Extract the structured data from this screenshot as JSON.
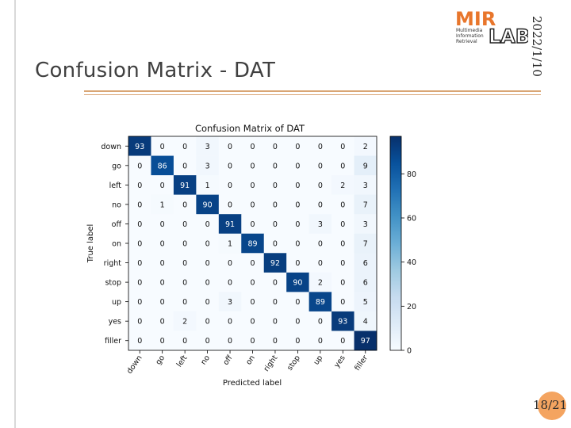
{
  "slide": {
    "title": "Confusion Matrix - DAT",
    "date": "2022/1/10",
    "page": "18/21",
    "logo_text": [
      "Multimedia",
      "Information",
      "Retrieval"
    ],
    "logo_word": "LAB",
    "logo_brand": "MIR"
  },
  "colors": {
    "accent": "#d9a574",
    "page_badge": "#f4a460"
  },
  "chart_data": {
    "type": "heatmap",
    "title": "Confusion Matrix of DAT",
    "xlabel": "Predicted label",
    "ylabel": "True label",
    "x_categories": [
      "down",
      "go",
      "left",
      "no",
      "off",
      "on",
      "right",
      "stop",
      "up",
      "yes",
      "filler"
    ],
    "y_categories": [
      "down",
      "go",
      "left",
      "no",
      "off",
      "on",
      "right",
      "stop",
      "up",
      "yes",
      "filler"
    ],
    "values": [
      [
        93,
        0,
        0,
        3,
        0,
        0,
        0,
        0,
        0,
        0,
        2
      ],
      [
        0,
        86,
        0,
        3,
        0,
        0,
        0,
        0,
        0,
        0,
        9
      ],
      [
        0,
        0,
        91,
        1,
        0,
        0,
        0,
        0,
        0,
        2,
        3
      ],
      [
        0,
        1,
        0,
        90,
        0,
        0,
        0,
        0,
        0,
        0,
        7
      ],
      [
        0,
        0,
        0,
        0,
        91,
        0,
        0,
        0,
        3,
        0,
        3
      ],
      [
        0,
        0,
        0,
        0,
        1,
        89,
        0,
        0,
        0,
        0,
        7
      ],
      [
        0,
        0,
        0,
        0,
        0,
        0,
        92,
        0,
        0,
        0,
        6
      ],
      [
        0,
        0,
        0,
        0,
        0,
        0,
        0,
        90,
        2,
        0,
        6
      ],
      [
        0,
        0,
        0,
        0,
        3,
        0,
        0,
        0,
        89,
        0,
        5
      ],
      [
        0,
        0,
        2,
        0,
        0,
        0,
        0,
        0,
        0,
        93,
        4
      ],
      [
        0,
        0,
        0,
        0,
        0,
        0,
        0,
        0,
        0,
        0,
        97
      ]
    ],
    "colorbar": {
      "range": [
        0,
        97
      ],
      "ticks": [
        "0",
        "20",
        "40",
        "60",
        "80"
      ],
      "colormap": "Blues"
    }
  }
}
